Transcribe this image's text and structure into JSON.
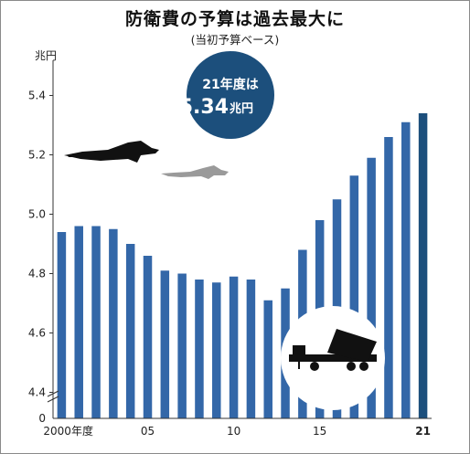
{
  "header": {
    "title": "防衛費の予算は過去最大に",
    "subtitle": "(当初予算ベース)",
    "unit": "兆円"
  },
  "badge": {
    "line1": "21年度は",
    "value": "5.34",
    "unit": "兆円",
    "color": "#1c4f7c"
  },
  "icons": [
    "fighter-jet-black-icon",
    "fighter-jet-gray-icon",
    "missile-launcher-icon"
  ],
  "colors": {
    "bar": "#3367a8",
    "bar_highlight": "#1c4f7c",
    "axis": "#333333"
  },
  "chart_data": {
    "type": "bar",
    "x": [
      2000,
      2001,
      2002,
      2003,
      2004,
      2005,
      2006,
      2007,
      2008,
      2009,
      2010,
      2011,
      2012,
      2013,
      2014,
      2015,
      2016,
      2017,
      2018,
      2019,
      2020,
      2021
    ],
    "values": [
      4.94,
      4.96,
      4.96,
      4.95,
      4.9,
      4.86,
      4.81,
      4.8,
      4.78,
      4.77,
      4.79,
      4.78,
      4.71,
      4.75,
      4.88,
      4.98,
      5.05,
      5.13,
      5.19,
      5.26,
      5.31,
      5.34
    ],
    "x_tick_labels": [
      {
        "x": 2000,
        "label": "2000年度"
      },
      {
        "x": 2005,
        "label": "05"
      },
      {
        "x": 2010,
        "label": "10"
      },
      {
        "x": 2015,
        "label": "15"
      },
      {
        "x": 2021,
        "label": "21"
      }
    ],
    "y_ticks": [
      "4.4",
      "4.6",
      "4.8",
      "5.0",
      "5.2",
      "5.4"
    ],
    "y_zero_label": "0",
    "ylim": [
      4.3,
      5.4
    ],
    "axis_break": true,
    "highlight": 2021,
    "grid": false
  }
}
